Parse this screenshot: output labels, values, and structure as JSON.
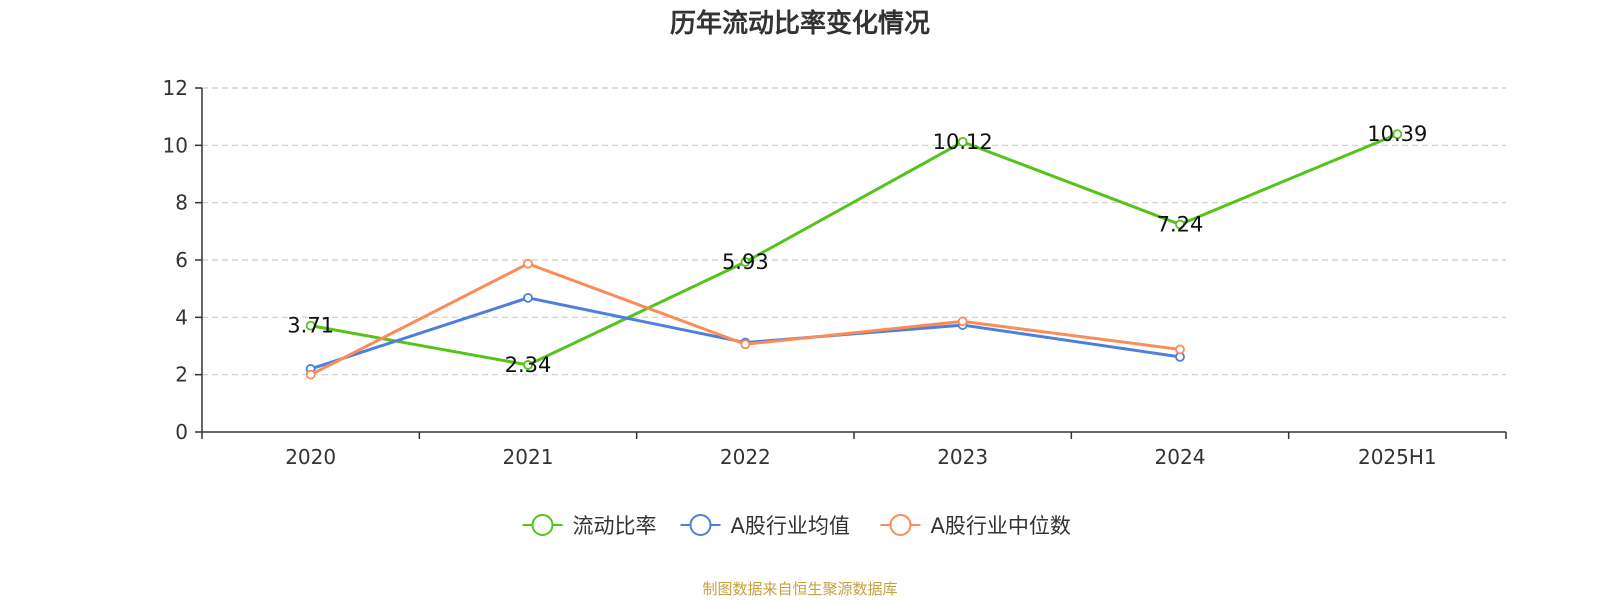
{
  "chart_data": {
    "type": "line",
    "title": "历年流动比率变化情况",
    "categories": [
      "2020",
      "2021",
      "2022",
      "2023",
      "2024",
      "2025H1"
    ],
    "ylim": [
      0,
      12
    ],
    "yticks": [
      0,
      2,
      4,
      6,
      8,
      10,
      12
    ],
    "grid": true,
    "legend_position": "bottom-center",
    "series": [
      {
        "name": "流动比率",
        "color": "#52c41a",
        "values": [
          3.71,
          2.34,
          5.93,
          10.12,
          7.24,
          10.39
        ],
        "labels": [
          "3.71",
          "2.34",
          "5.93",
          "10.12",
          "7.24",
          "10.39"
        ]
      },
      {
        "name": "A股行业均值",
        "color": "#4e7fdc",
        "values": [
          2.2,
          4.68,
          3.12,
          3.73,
          2.62,
          null
        ]
      },
      {
        "name": "A股行业中位数",
        "color": "#fa8c5a",
        "values": [
          2.0,
          5.87,
          3.06,
          3.86,
          2.88,
          null
        ]
      }
    ],
    "source": "制图数据来自恒生聚源数据库",
    "source_color": "#c8a040"
  }
}
